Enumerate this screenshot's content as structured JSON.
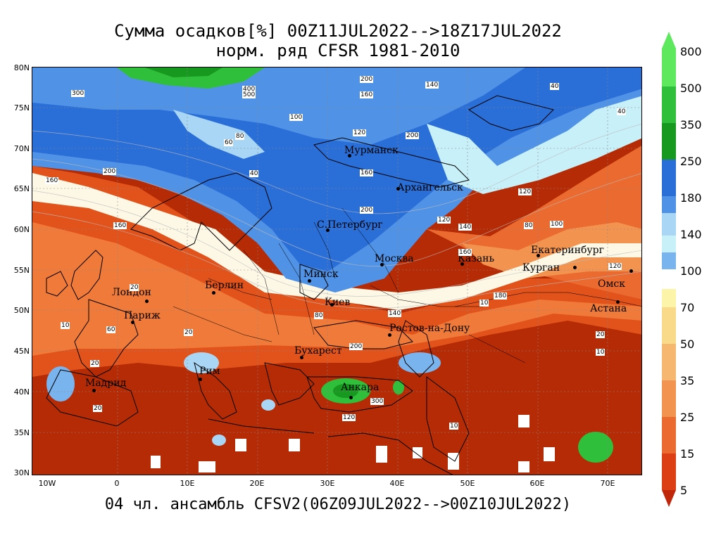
{
  "title_line1": "Сумма осадков[%] 00Z11JUL2022-->18Z17JUL2022",
  "title_line2": "норм. ряд CFSR 1981-2010",
  "footer": "04 чл. ансамбль CFSV2(06Z09JUL2022-->00Z10JUL2022)",
  "lat_labels": [
    "80N",
    "75N",
    "70N",
    "65N",
    "60N",
    "55N",
    "50N",
    "45N",
    "40N",
    "35N",
    "30N"
  ],
  "lon_labels": [
    "10W",
    "0",
    "10E",
    "20E",
    "30E",
    "40E",
    "50E",
    "60E",
    "70E"
  ],
  "cities": [
    {
      "name": "Мурманск"
    },
    {
      "name": "Архангельск"
    },
    {
      "name": "С.Петербург"
    },
    {
      "name": "Москва"
    },
    {
      "name": "Казань"
    },
    {
      "name": "Екатеринбург"
    },
    {
      "name": "Курган"
    },
    {
      "name": "Омск"
    },
    {
      "name": "Астана"
    },
    {
      "name": "Минск"
    },
    {
      "name": "Киев"
    },
    {
      "name": "Берлин"
    },
    {
      "name": "Лондон"
    },
    {
      "name": "Париж"
    },
    {
      "name": "Ростов-на-Дону"
    },
    {
      "name": "Бухарест"
    },
    {
      "name": "Рим"
    },
    {
      "name": "Мадрид"
    },
    {
      "name": "Анкара"
    }
  ],
  "contour_labels": [
    "300",
    "400",
    "500",
    "200",
    "160",
    "140",
    "100",
    "80",
    "60",
    "40",
    "20",
    "10",
    "120",
    "180"
  ],
  "legend": {
    "upper_labels": [
      "800",
      "500",
      "350",
      "250",
      "180",
      "140",
      "100"
    ],
    "lower_labels": [
      "70",
      "50",
      "35",
      "25",
      "15",
      "5"
    ],
    "upper_colors": [
      "#5ee85e",
      "#2fbf3a",
      "#17991f",
      "#2a6ed8",
      "#4f92e6",
      "#7ab4ee",
      "#a9d6f5",
      "#c8f0f8"
    ],
    "lower_colors": [
      "#fcf4a8",
      "#f9d98a",
      "#f6b870",
      "#f29450",
      "#ea6a2f",
      "#dc3f14",
      "#c0260a"
    ]
  }
}
